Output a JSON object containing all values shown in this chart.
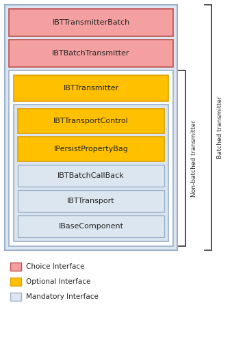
{
  "background_color": "#ffffff",
  "choice_color": "#f4a0a0",
  "choice_border": "#c0504d",
  "optional_color": "#ffc000",
  "optional_border": "#e0a000",
  "mandatory_color": "#dce6f1",
  "mandatory_border": "#9ab0c8",
  "container_color": "#dce6f1",
  "container_border": "#9ab0c8",
  "legend": [
    {
      "label": "Choice Interface",
      "color": "#f4a0a0",
      "border": "#c0504d"
    },
    {
      "label": "Optional Interface",
      "color": "#ffc000",
      "border": "#e0a000"
    },
    {
      "label": "Mandatory Interface",
      "color": "#dce6f1",
      "border": "#9ab0c8"
    }
  ],
  "bracket_label_nonbatch": "Non-batched transmitter",
  "bracket_label_batch": "Batched transmitter",
  "font_size": 8.0
}
